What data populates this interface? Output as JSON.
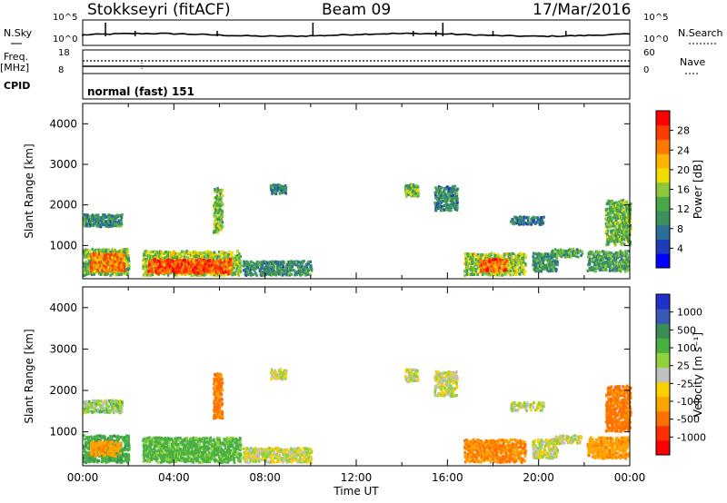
{
  "header": {
    "station": "Stokkseyri (fitACF)",
    "beam": "Beam 09",
    "date": "17/Mar/2016"
  },
  "status_panels": {
    "nsky_label": "N.Sky",
    "nsky_ticks": [
      "10^5",
      "10^0"
    ],
    "nsearch_label": "N.Search",
    "nsearch_ticks": [
      "10^5",
      "10^0"
    ],
    "freq_label": "Freq.",
    "freq_unit": "[MHz]",
    "freq_ticks": [
      "18",
      "8"
    ],
    "nave_label": "Nave",
    "nave_ticks": [
      "60",
      "0"
    ],
    "cpid_label": "CPID",
    "cpid_value": "normal (fast) 151"
  },
  "chart_data": [
    {
      "type": "heatmap",
      "name": "power-panel",
      "ylabel": "Slant Range [km]",
      "yticks": [
        "4000",
        "3000",
        "2000",
        "1000"
      ],
      "ylim": [
        180,
        4500
      ],
      "xlim": [
        0,
        24
      ],
      "colorbar": {
        "label": "Power [dB]",
        "ticks": [
          "28",
          "24",
          "20",
          "16",
          "12",
          "8",
          "4"
        ],
        "range": [
          0,
          32
        ],
        "colors": [
          "#0000ff",
          "#1f3cb8",
          "#2c6e96",
          "#3c9060",
          "#48a848",
          "#8cc83c",
          "#f0dc00",
          "#ffb400",
          "#ff7800",
          "#ff3c00",
          "#ff0000"
        ]
      },
      "regions": [
        {
          "t0": 0.0,
          "t1": 2.0,
          "r0": 250,
          "r1": 900,
          "p": 14
        },
        {
          "t0": 0.3,
          "t1": 1.8,
          "r0": 350,
          "r1": 800,
          "p": 24
        },
        {
          "t0": 0.0,
          "t1": 1.7,
          "r0": 1450,
          "r1": 1750,
          "p": 10
        },
        {
          "t0": 2.6,
          "t1": 6.9,
          "r0": 250,
          "r1": 850,
          "p": 16
        },
        {
          "t0": 2.8,
          "t1": 6.5,
          "r0": 300,
          "r1": 650,
          "p": 27
        },
        {
          "t0": 5.7,
          "t1": 6.1,
          "r0": 1300,
          "r1": 2400,
          "p": 14
        },
        {
          "t0": 7.0,
          "t1": 10.0,
          "r0": 250,
          "r1": 600,
          "p": 10
        },
        {
          "t0": 8.2,
          "t1": 8.9,
          "r0": 2250,
          "r1": 2500,
          "p": 9
        },
        {
          "t0": 14.1,
          "t1": 14.7,
          "r0": 2200,
          "r1": 2500,
          "p": 14
        },
        {
          "t0": 15.4,
          "t1": 16.4,
          "r0": 1850,
          "r1": 2450,
          "p": 10
        },
        {
          "t0": 16.7,
          "t1": 19.4,
          "r0": 250,
          "r1": 800,
          "p": 16
        },
        {
          "t0": 17.4,
          "t1": 18.6,
          "r0": 350,
          "r1": 650,
          "p": 26
        },
        {
          "t0": 18.7,
          "t1": 20.2,
          "r0": 1500,
          "r1": 1700,
          "p": 8
        },
        {
          "t0": 20.5,
          "t1": 21.9,
          "r0": 700,
          "r1": 900,
          "p": 12
        },
        {
          "t0": 19.7,
          "t1": 20.8,
          "r0": 350,
          "r1": 800,
          "p": 11
        },
        {
          "t0": 22.1,
          "t1": 23.9,
          "r0": 350,
          "r1": 850,
          "p": 12
        },
        {
          "t0": 22.9,
          "t1": 24.0,
          "r0": 1000,
          "r1": 2100,
          "p": 14
        }
      ]
    },
    {
      "type": "heatmap",
      "name": "velocity-panel",
      "ylabel": "Slant Range [km]",
      "yticks": [
        "4000",
        "3000",
        "2000",
        "1000"
      ],
      "ylim": [
        180,
        4500
      ],
      "xlim": [
        0,
        24
      ],
      "xticks": [
        "00:00",
        "04:00",
        "08:00",
        "12:00",
        "16:00",
        "20:00",
        "00:00"
      ],
      "xlabel": "Time UT",
      "colorbar": {
        "label": "Velocity [m s⁻¹]",
        "ticks": [
          "1000",
          "500",
          "100",
          "25",
          "-25",
          "-100",
          "-500",
          "-1000"
        ],
        "colors": [
          "#2030c8",
          "#3a58b8",
          "#3c8c5a",
          "#48b040",
          "#8ed23c",
          "#c0c0c0",
          "#ffd000",
          "#ffa500",
          "#ff7000",
          "#ff3000",
          "#ff0000"
        ]
      },
      "regions": [
        {
          "t0": 0.0,
          "t1": 2.0,
          "r0": 250,
          "r1": 900,
          "v": 200
        },
        {
          "t0": 0.3,
          "t1": 1.6,
          "r0": 400,
          "r1": 750,
          "v": -200
        },
        {
          "t0": 0.0,
          "t1": 1.7,
          "r0": 1450,
          "r1": 1750,
          "v": 50
        },
        {
          "t0": 2.6,
          "t1": 6.9,
          "r0": 250,
          "r1": 850,
          "v": 150
        },
        {
          "t0": 5.7,
          "t1": 6.1,
          "r0": 1300,
          "r1": 2400,
          "v": -300
        },
        {
          "t0": 7.0,
          "t1": 10.0,
          "r0": 250,
          "r1": 600,
          "v": 10
        },
        {
          "t0": 8.2,
          "t1": 8.9,
          "r0": 2250,
          "r1": 2500,
          "v": 0
        },
        {
          "t0": 14.1,
          "t1": 14.7,
          "r0": 2200,
          "r1": 2500,
          "v": 0
        },
        {
          "t0": 15.4,
          "t1": 16.4,
          "r0": 1850,
          "r1": 2450,
          "v": 10
        },
        {
          "t0": 16.7,
          "t1": 19.4,
          "r0": 250,
          "r1": 800,
          "v": -250
        },
        {
          "t0": 18.7,
          "t1": 20.2,
          "r0": 1500,
          "r1": 1700,
          "v": 0
        },
        {
          "t0": 20.5,
          "t1": 21.9,
          "r0": 700,
          "r1": 900,
          "v": 0
        },
        {
          "t0": 19.7,
          "t1": 20.8,
          "r0": 350,
          "r1": 800,
          "v": 0
        },
        {
          "t0": 22.1,
          "t1": 23.9,
          "r0": 350,
          "r1": 850,
          "v": -200
        },
        {
          "t0": 22.9,
          "t1": 24.0,
          "r0": 1000,
          "r1": 2100,
          "v": -300
        }
      ]
    }
  ]
}
